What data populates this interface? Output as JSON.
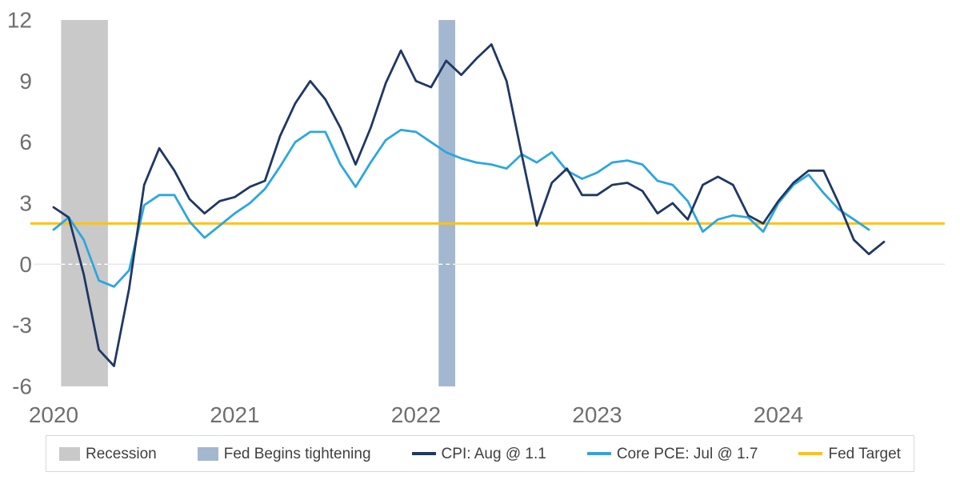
{
  "chart_data": {
    "type": "line",
    "title": "",
    "x_axis": {
      "ticks": [
        {
          "label": "2020",
          "month": 0
        },
        {
          "label": "2021",
          "month": 12
        },
        {
          "label": "2022",
          "month": 24
        },
        {
          "label": "2023",
          "month": 36
        },
        {
          "label": "2024",
          "month": 48
        }
      ]
    },
    "y_axis": {
      "ticks": [
        12,
        9,
        6,
        3,
        0,
        -3,
        -6
      ],
      "range": [
        -6,
        12
      ]
    },
    "grid": {
      "zero_line_only": true
    },
    "months": [
      "2020-01",
      "2020-02",
      "2020-03",
      "2020-04",
      "2020-05",
      "2020-06",
      "2020-07",
      "2020-08",
      "2020-09",
      "2020-10",
      "2020-11",
      "2020-12",
      "2021-01",
      "2021-02",
      "2021-03",
      "2021-04",
      "2021-05",
      "2021-06",
      "2021-07",
      "2021-08",
      "2021-09",
      "2021-10",
      "2021-11",
      "2021-12",
      "2022-01",
      "2022-02",
      "2022-03",
      "2022-04",
      "2022-05",
      "2022-06",
      "2022-07",
      "2022-08",
      "2022-09",
      "2022-10",
      "2022-11",
      "2022-12",
      "2023-01",
      "2023-02",
      "2023-03",
      "2023-04",
      "2023-05",
      "2023-06",
      "2023-07",
      "2023-08",
      "2023-09",
      "2023-10",
      "2023-11",
      "2023-12",
      "2024-01",
      "2024-02",
      "2024-03",
      "2024-04",
      "2024-05",
      "2024-06",
      "2024-07",
      "2024-08"
    ],
    "series": [
      {
        "name": "CPI: Aug @ 1.1",
        "color": "#1f3864",
        "values": [
          2.8,
          2.3,
          -0.5,
          -4.2,
          -5.0,
          -1.2,
          3.9,
          5.7,
          4.6,
          3.2,
          2.5,
          3.1,
          3.3,
          3.8,
          4.1,
          6.3,
          7.9,
          9.0,
          8.1,
          6.7,
          4.9,
          6.7,
          8.9,
          10.5,
          9.0,
          8.7,
          10.0,
          9.3,
          10.1,
          10.8,
          9.0,
          5.4,
          1.9,
          4.0,
          4.7,
          3.4,
          3.4,
          3.9,
          4.0,
          3.6,
          2.5,
          3.0,
          2.2,
          3.9,
          4.3,
          3.9,
          2.4,
          2.0,
          3.1,
          4.0,
          4.6,
          4.6,
          3.0,
          1.2,
          0.5,
          1.1
        ]
      },
      {
        "name": "Core PCE: Jul @ 1.7",
        "color": "#2ca6e0",
        "values": [
          1.7,
          2.3,
          1.2,
          -0.8,
          -1.1,
          -0.3,
          2.9,
          3.4,
          3.4,
          2.1,
          1.3,
          1.9,
          2.5,
          3.0,
          3.7,
          4.8,
          6.0,
          6.5,
          6.5,
          4.9,
          3.8,
          5.0,
          6.1,
          6.6,
          6.5,
          6.0,
          5.5,
          5.2,
          5.0,
          4.9,
          4.7,
          5.4,
          5.0,
          5.5,
          4.6,
          4.2,
          4.5,
          5.0,
          5.1,
          4.9,
          4.1,
          3.9,
          3.1,
          1.6,
          2.2,
          2.4,
          2.3,
          1.6,
          3.0,
          3.9,
          4.4,
          3.5,
          2.7,
          2.2,
          1.7
        ]
      }
    ],
    "reference_line": {
      "name": "Fed Target",
      "value": 2.0,
      "color": "#ffc408"
    },
    "bands": [
      {
        "name": "Recession",
        "from_month": 0.5,
        "to_month": 3.6,
        "color": "#c9c9c9"
      },
      {
        "name": "Fed Begins tightening",
        "from_month": 25.5,
        "to_month": 26.6,
        "color": "#a3b8cf"
      }
    ],
    "legend": {
      "position": "bottom",
      "items": [
        {
          "label": "Recession",
          "swatch": "rect",
          "color": "#c9c9c9"
        },
        {
          "label": "Fed Begins tightening",
          "swatch": "rect",
          "color": "#a3b8cf"
        },
        {
          "label": "CPI: Aug @ 1.1",
          "swatch": "line",
          "color": "#1f3864"
        },
        {
          "label": "Core PCE: Jul @ 1.7",
          "swatch": "line",
          "color": "#2ca6e0"
        },
        {
          "label": "Fed Target",
          "swatch": "line",
          "color": "#ffc408"
        }
      ]
    },
    "axis_text_color": "#6f6f6f"
  }
}
